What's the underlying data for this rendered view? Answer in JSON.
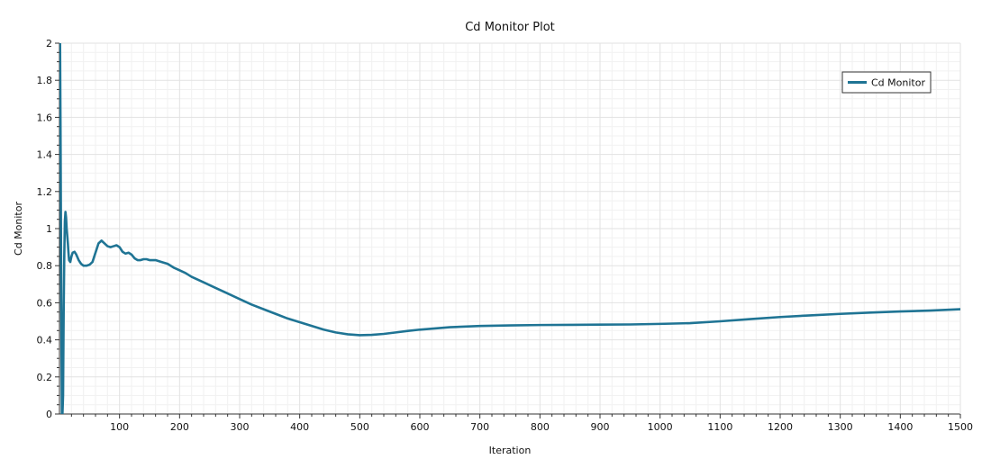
{
  "chart_data": {
    "type": "line",
    "title": "Cd Monitor Plot",
    "xlabel": "Iteration",
    "ylabel": "Cd Monitor",
    "xlim": [
      0,
      1500
    ],
    "ylim": [
      0,
      2
    ],
    "xticks": [
      100,
      200,
      300,
      400,
      500,
      600,
      700,
      800,
      900,
      1000,
      1100,
      1200,
      1300,
      1400,
      1500
    ],
    "yticks": [
      0,
      0.2,
      0.4,
      0.6,
      0.8,
      1,
      1.2,
      1.4,
      1.6,
      1.8,
      2
    ],
    "grid": true,
    "minor_grid": true,
    "legend_position": "top-right",
    "color": "#1f7494",
    "series": [
      {
        "name": "Cd Monitor",
        "x": [
          0,
          1,
          2,
          3,
          4,
          5,
          6,
          7,
          8,
          9,
          10,
          11,
          12,
          13,
          14,
          15,
          16,
          18,
          20,
          22,
          25,
          28,
          32,
          36,
          40,
          45,
          50,
          55,
          60,
          65,
          70,
          75,
          80,
          85,
          90,
          95,
          100,
          105,
          110,
          115,
          120,
          125,
          130,
          135,
          140,
          145,
          150,
          160,
          170,
          180,
          190,
          200,
          210,
          220,
          240,
          260,
          280,
          300,
          320,
          340,
          360,
          380,
          400,
          420,
          440,
          460,
          480,
          500,
          520,
          540,
          560,
          580,
          600,
          650,
          700,
          750,
          800,
          850,
          900,
          950,
          1000,
          1050,
          1100,
          1150,
          1200,
          1250,
          1300,
          1350,
          1400,
          1450,
          1500
        ],
        "y": [
          2.0,
          2.0,
          1.4,
          0.6,
          0.0,
          0.0,
          0.1,
          0.55,
          0.85,
          1.04,
          1.09,
          1.06,
          1.0,
          0.96,
          0.92,
          0.87,
          0.83,
          0.82,
          0.85,
          0.87,
          0.875,
          0.86,
          0.83,
          0.81,
          0.8,
          0.8,
          0.805,
          0.82,
          0.87,
          0.92,
          0.935,
          0.92,
          0.905,
          0.9,
          0.905,
          0.91,
          0.9,
          0.875,
          0.865,
          0.87,
          0.86,
          0.84,
          0.83,
          0.83,
          0.835,
          0.835,
          0.83,
          0.83,
          0.82,
          0.81,
          0.79,
          0.775,
          0.76,
          0.74,
          0.71,
          0.68,
          0.65,
          0.62,
          0.59,
          0.565,
          0.54,
          0.515,
          0.495,
          0.475,
          0.455,
          0.44,
          0.43,
          0.425,
          0.427,
          0.432,
          0.44,
          0.448,
          0.455,
          0.468,
          0.475,
          0.478,
          0.48,
          0.481,
          0.482,
          0.483,
          0.486,
          0.49,
          0.5,
          0.512,
          0.523,
          0.532,
          0.54,
          0.547,
          0.553,
          0.558,
          0.565
        ]
      }
    ]
  }
}
